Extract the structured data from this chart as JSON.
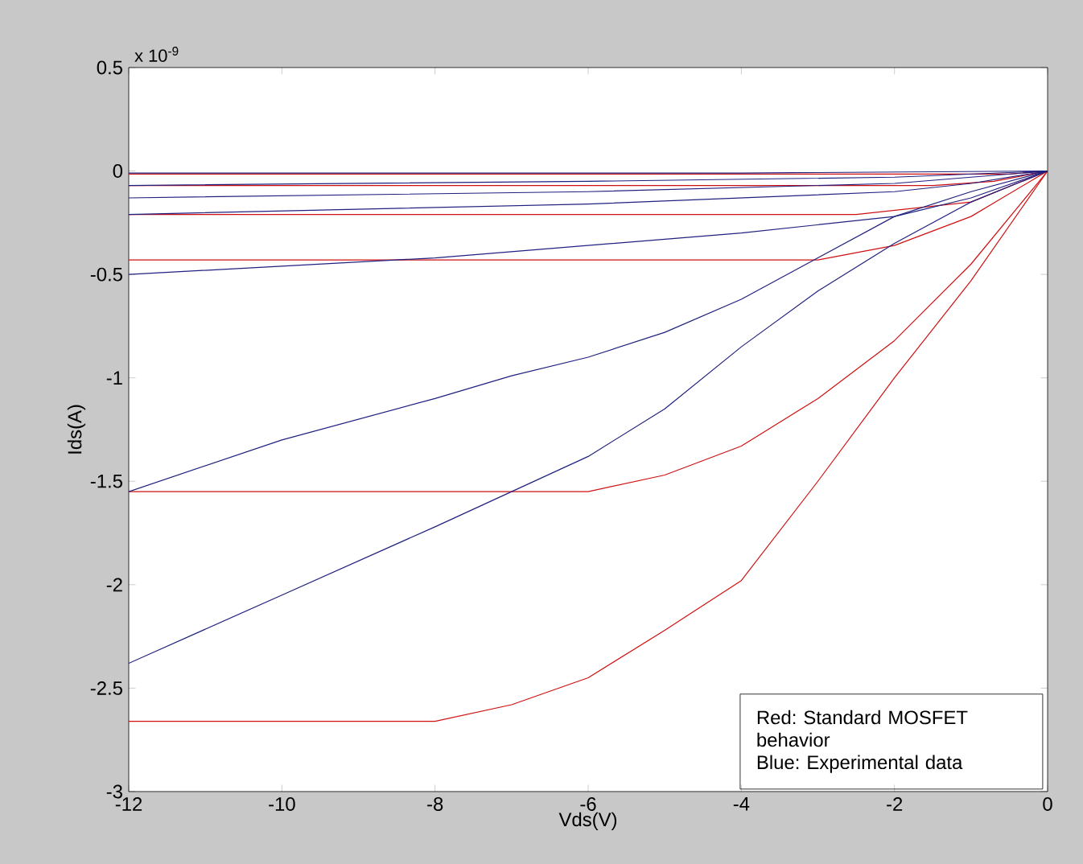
{
  "chart_data": {
    "type": "line",
    "xlabel": "Vds(V)",
    "ylabel": "Ids(A)",
    "annotations": [
      "x 10$^{-9}$",
      "Red: Standard MOSFET behavior",
      "Blue: Experimental data"
    ],
    "xlim": [
      -12,
      0
    ],
    "ylim": [
      -3,
      0.5
    ],
    "xticks": [
      -12,
      -10,
      -8,
      -6,
      -4,
      -2,
      0
    ],
    "yticks": [
      -3,
      -2.5,
      -2,
      -1.5,
      -1,
      -0.5,
      0,
      0.5
    ],
    "grid": false,
    "marker": "none",
    "line_style": "solid",
    "series": [
      {
        "color": "#d01010",
        "x": [
          -12,
          -8,
          -7,
          -6,
          -5,
          -4,
          -3,
          -2,
          -1,
          0
        ],
        "values": [
          -2.66,
          -2.66,
          -2.58,
          -2.45,
          -2.22,
          -1.98,
          -1.5,
          -1.0,
          -0.53,
          0
        ]
      },
      {
        "color": "#d01010",
        "x": [
          -12,
          -6,
          -5,
          -4,
          -3,
          -2,
          -1,
          0
        ],
        "values": [
          -1.55,
          -1.55,
          -1.47,
          -1.33,
          -1.1,
          -0.82,
          -0.45,
          0
        ]
      },
      {
        "color": "#d01010",
        "x": [
          -12,
          -3,
          -2,
          -1,
          0
        ],
        "values": [
          -0.43,
          -0.43,
          -0.36,
          -0.22,
          0
        ]
      },
      {
        "color": "#d01010",
        "x": [
          -12,
          -2.5,
          -1,
          0
        ],
        "values": [
          -0.21,
          -0.21,
          -0.15,
          0
        ]
      },
      {
        "color": "#d01010",
        "x": [
          -12,
          -1.5,
          -0.7,
          0
        ],
        "values": [
          -0.07,
          -0.07,
          -0.05,
          0
        ]
      },
      {
        "color": "#d01010",
        "x": [
          -12,
          -0.5,
          0
        ],
        "values": [
          -0.015,
          -0.015,
          0
        ]
      },
      {
        "color": "#202080",
        "x": [
          -12,
          -10,
          -8,
          -7,
          -6,
          -5,
          -4,
          -3,
          -2,
          -1,
          0
        ],
        "values": [
          -2.38,
          -2.05,
          -1.72,
          -1.55,
          -1.38,
          -1.15,
          -0.85,
          -0.58,
          -0.35,
          -0.15,
          0
        ]
      },
      {
        "color": "#202080",
        "x": [
          -12,
          -10,
          -8,
          -7,
          -6,
          -5,
          -4,
          -3,
          -2,
          -1,
          0
        ],
        "values": [
          -1.55,
          -1.3,
          -1.1,
          -0.99,
          -0.9,
          -0.78,
          -0.62,
          -0.42,
          -0.22,
          -0.1,
          0
        ]
      },
      {
        "color": "#202080",
        "x": [
          -12,
          -8,
          -6,
          -4,
          -2,
          -1,
          0
        ],
        "values": [
          -0.5,
          -0.42,
          -0.36,
          -0.3,
          -0.22,
          -0.13,
          0
        ]
      },
      {
        "color": "#202080",
        "x": [
          -12,
          -6,
          -2,
          -1,
          0
        ],
        "values": [
          -0.21,
          -0.16,
          -0.1,
          -0.06,
          0
        ]
      },
      {
        "color": "#202080",
        "x": [
          -12,
          -6,
          -2,
          -1,
          0
        ],
        "values": [
          -0.13,
          -0.1,
          -0.06,
          -0.03,
          0
        ]
      },
      {
        "color": "#202080",
        "x": [
          -12,
          -6,
          -2,
          0
        ],
        "values": [
          -0.07,
          -0.05,
          -0.03,
          0
        ]
      },
      {
        "color": "#202080",
        "x": [
          -12,
          -4,
          0
        ],
        "values": [
          -0.01,
          -0.01,
          0
        ]
      }
    ]
  }
}
